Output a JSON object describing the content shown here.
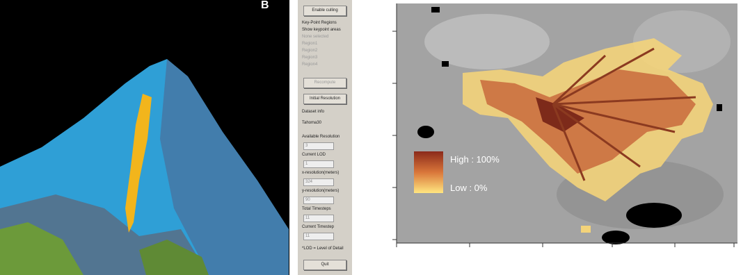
{
  "panel_label": "B",
  "panel": {
    "enable_culling": "Enable culling",
    "regions_heading": "Key-Point Regions",
    "show_keypoints": "Show keypoint areas",
    "regions": [
      "None selected",
      "Region1",
      "Region2",
      "Region3",
      "Region4"
    ],
    "recompute": "Recompute",
    "initial_resolution": "Initial Resolution",
    "dataset_info": "Dataset info",
    "dataset_name": "Tahoma30",
    "fields": [
      {
        "label": "Available Resolution",
        "value": "3"
      },
      {
        "label": "Current LOD",
        "value": "1"
      },
      {
        "label": "x-resolution(meters)",
        "value": "324"
      },
      {
        "label": "y-resolution(meters)",
        "value": "90"
      },
      {
        "label": "Total Timesteps",
        "value": "11"
      },
      {
        "label": "Current Timestep",
        "value": "11"
      }
    ],
    "footnote": "*LOD = Level of Detail",
    "quit": "Quit"
  },
  "map_legend": {
    "high": "High : 100%",
    "low": "Low : 0%"
  }
}
